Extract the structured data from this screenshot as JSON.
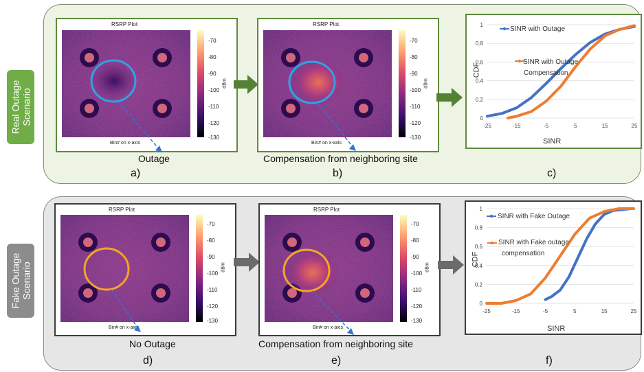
{
  "rows": {
    "top": {
      "side_label_line1": "Real Outage",
      "side_label_line2": "Scenario",
      "heatmaps": [
        {
          "title": "RSRP Plot",
          "xaxis": "Bin# on x-axis",
          "unit": "dBm",
          "caption": "Outage",
          "letter": "a)"
        },
        {
          "title": "RSRP Plot",
          "xaxis": "Bin# on x-axis",
          "unit": "dBm",
          "caption": "Compensation from neighboring site",
          "letter": "b)"
        }
      ],
      "cdf": {
        "letter": "c)",
        "ylabel": "CDF",
        "xlabel": "SINR",
        "legend": [
          "SINR with Outage",
          "SINR with Outage",
          "Compensation"
        ]
      }
    },
    "bottom": {
      "side_label_line1": "Fake Outage",
      "side_label_line2": "Scenario",
      "heatmaps": [
        {
          "title": "RSRP Plot",
          "xaxis": "Bin# on x-axis",
          "unit": "dBm",
          "caption": "No Outage",
          "letter": "d)"
        },
        {
          "title": "RSRP Plot",
          "xaxis": "Bin# on x-axis",
          "unit": "dBm",
          "caption": "Compensation from neighboring site",
          "letter": "e)"
        }
      ],
      "cdf": {
        "letter": "f)",
        "ylabel": "CDF",
        "xlabel": "SINR",
        "legend": [
          "SINR with Fake Outage",
          "SINR with Fake outage",
          "compensation"
        ]
      }
    }
  },
  "colorbar_ticks": [
    "-70",
    "-80",
    "-90",
    "-100",
    "-110",
    "-120",
    "-130"
  ],
  "colors": {
    "outage_circle": "#2ea3e6",
    "fake_circle": "#f5a623",
    "series_blue": "#4472c4",
    "series_orange": "#ed7d31",
    "arrow_green": "#548235",
    "arrow_gray": "#6b6b6b"
  },
  "chart_data": [
    {
      "type": "line",
      "ylabel": "CDF",
      "xlabel": "SINR",
      "x_ticks": [
        "-25",
        "-15",
        "-5",
        "5",
        "15",
        "25"
      ],
      "y_ticks": [
        "0",
        "0.2",
        "0.4",
        "0.6",
        "0.8",
        "1"
      ],
      "xlim": [
        -25,
        25
      ],
      "ylim": [
        0,
        1
      ],
      "series": [
        {
          "name": "SINR with Outage",
          "color": "#4472c4",
          "x": [
            -25,
            -20,
            -15,
            -10,
            -5,
            0,
            5,
            10,
            15,
            20,
            25
          ],
          "y": [
            0.02,
            0.05,
            0.11,
            0.22,
            0.37,
            0.53,
            0.68,
            0.81,
            0.9,
            0.95,
            0.98
          ]
        },
        {
          "name": "SINR with Outage Compensation",
          "color": "#ed7d31",
          "x": [
            -18,
            -15,
            -10,
            -5,
            0,
            5,
            10,
            15,
            20,
            25
          ],
          "y": [
            0.0,
            0.02,
            0.07,
            0.18,
            0.34,
            0.55,
            0.74,
            0.88,
            0.95,
            0.99
          ]
        }
      ]
    },
    {
      "type": "line",
      "ylabel": "CDF",
      "xlabel": "SINR",
      "x_ticks": [
        "-25",
        "-15",
        "-5",
        "5",
        "15",
        "25"
      ],
      "y_ticks": [
        "0",
        "0.2",
        "0.4",
        "0.6",
        "0.8",
        "1"
      ],
      "xlim": [
        -25,
        25
      ],
      "ylim": [
        0,
        1
      ],
      "series": [
        {
          "name": "SINR with Fake Outage",
          "color": "#4472c4",
          "x": [
            -5,
            -3,
            0,
            3,
            6,
            9,
            12,
            15,
            18,
            21,
            24
          ],
          "y": [
            0.04,
            0.07,
            0.14,
            0.28,
            0.48,
            0.68,
            0.84,
            0.94,
            0.98,
            0.99,
            1.0
          ]
        },
        {
          "name": "SINR with Fake outage compensation",
          "color": "#ed7d31",
          "x": [
            -25,
            -20,
            -15,
            -10,
            -5,
            0,
            5,
            10,
            15,
            20,
            25
          ],
          "y": [
            0.0,
            0.0,
            0.03,
            0.1,
            0.27,
            0.5,
            0.73,
            0.9,
            0.97,
            1.0,
            1.0
          ]
        }
      ]
    }
  ]
}
